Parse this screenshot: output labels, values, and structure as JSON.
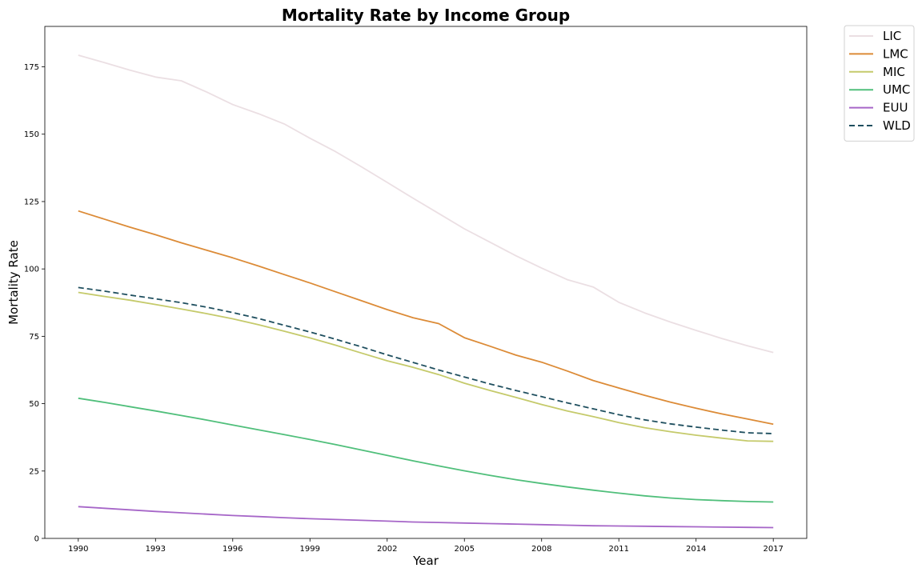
{
  "chart_data": {
    "type": "line",
    "title": "Mortality Rate by Income Group",
    "xlabel": "Year",
    "ylabel": "Mortality Rate",
    "xlim": [
      1988.7,
      2018.3
    ],
    "ylim": [
      0,
      190
    ],
    "xticks": [
      1990,
      1993,
      1996,
      1999,
      2002,
      2005,
      2008,
      2011,
      2014,
      2017
    ],
    "yticks": [
      0,
      25,
      50,
      75,
      100,
      125,
      150,
      175
    ],
    "grid": false,
    "legend_position": "outside-top-right",
    "x": [
      1990,
      1991,
      1992,
      1993,
      1994,
      1995,
      1996,
      1997,
      1998,
      1999,
      2000,
      2001,
      2002,
      2003,
      2004,
      2005,
      2006,
      2007,
      2008,
      2009,
      2010,
      2011,
      2012,
      2013,
      2014,
      2015,
      2016,
      2017
    ],
    "series": [
      {
        "name": "LIC",
        "color": "#ebdfe3",
        "dash": "solid",
        "values": [
          179.3,
          176.6,
          173.8,
          171.2,
          169.8,
          165.6,
          161.0,
          157.6,
          153.8,
          148.5,
          143.5,
          137.9,
          132.1,
          126.3,
          120.6,
          114.9,
          109.9,
          104.9,
          100.3,
          96.0,
          93.3,
          87.6,
          83.7,
          80.3,
          77.2,
          74.2,
          71.5,
          69.0
        ]
      },
      {
        "name": "LMC",
        "color": "#dc8b37",
        "dash": "solid",
        "values": [
          121.5,
          118.5,
          115.5,
          112.7,
          109.7,
          106.9,
          104.1,
          101.1,
          97.9,
          94.8,
          91.5,
          88.2,
          84.9,
          81.9,
          79.7,
          74.5,
          71.3,
          68.0,
          65.4,
          62.1,
          58.6,
          55.8,
          53.1,
          50.6,
          48.3,
          46.2,
          44.3,
          42.4
        ]
      },
      {
        "name": "MIC",
        "color": "#c5ca6b",
        "dash": "solid",
        "values": [
          91.3,
          89.8,
          88.4,
          86.8,
          85.1,
          83.4,
          81.5,
          79.3,
          76.9,
          74.4,
          71.7,
          68.8,
          65.9,
          63.5,
          60.8,
          57.6,
          54.9,
          52.3,
          49.7,
          47.3,
          45.2,
          43.0,
          41.1,
          39.6,
          38.3,
          37.2,
          36.2,
          36.0
        ]
      },
      {
        "name": "UMC",
        "color": "#50bf7b",
        "dash": "solid",
        "values": [
          52.0,
          50.5,
          48.9,
          47.3,
          45.6,
          43.9,
          42.1,
          40.3,
          38.5,
          36.7,
          34.8,
          32.8,
          30.8,
          28.8,
          26.9,
          25.1,
          23.4,
          21.8,
          20.4,
          19.1,
          17.9,
          16.8,
          15.8,
          15.0,
          14.4,
          14.0,
          13.7,
          13.5
        ]
      },
      {
        "name": "EUU",
        "color": "#a666c8",
        "dash": "solid",
        "values": [
          11.8,
          11.2,
          10.6,
          10.0,
          9.5,
          9.0,
          8.5,
          8.1,
          7.7,
          7.3,
          7.0,
          6.7,
          6.4,
          6.1,
          5.9,
          5.7,
          5.5,
          5.3,
          5.1,
          4.9,
          4.7,
          4.6,
          4.5,
          4.4,
          4.3,
          4.2,
          4.1,
          4.0
        ]
      },
      {
        "name": "WLD",
        "color": "#1f4f5f",
        "dash": "dashed",
        "values": [
          93.1,
          91.8,
          90.3,
          88.9,
          87.5,
          85.8,
          83.8,
          81.6,
          79.1,
          76.6,
          73.9,
          71.1,
          68.1,
          65.3,
          62.5,
          59.9,
          57.3,
          54.9,
          52.6,
          50.3,
          48.1,
          45.9,
          44.0,
          42.5,
          41.3,
          40.2,
          39.2,
          38.9
        ]
      }
    ]
  }
}
